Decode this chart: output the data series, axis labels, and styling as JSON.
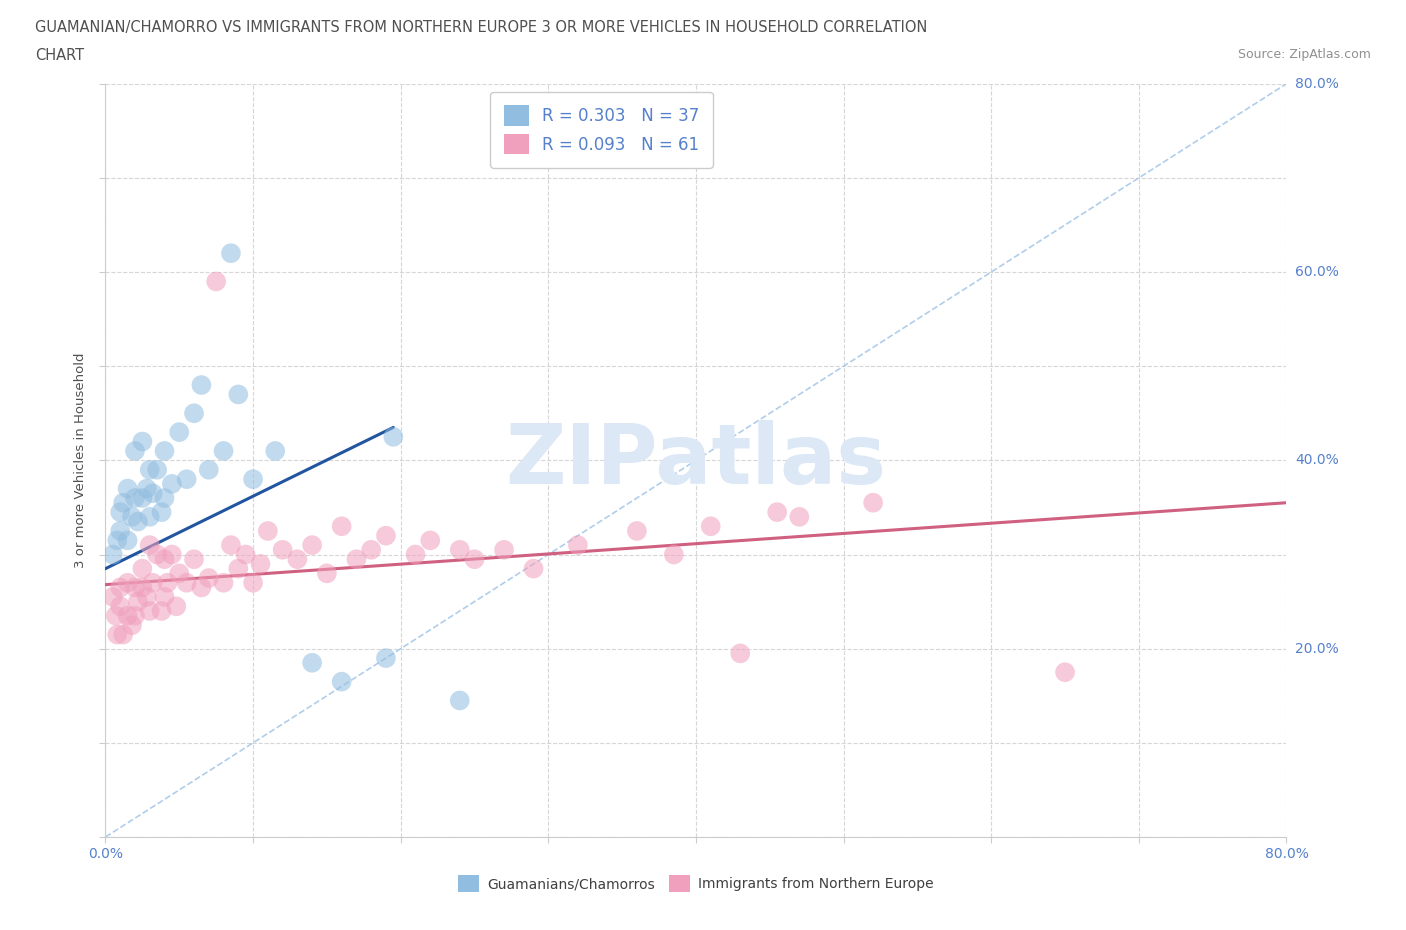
{
  "title_line1": "GUAMANIAN/CHAMORRO VS IMMIGRANTS FROM NORTHERN EUROPE 3 OR MORE VEHICLES IN HOUSEHOLD CORRELATION",
  "title_line2": "CHART",
  "source_text": "Source: ZipAtlas.com",
  "ylabel": "3 or more Vehicles in Household",
  "xlim": [
    0.0,
    0.8
  ],
  "ylim": [
    0.0,
    0.8
  ],
  "blue_scatter_x": [
    0.005,
    0.008,
    0.01,
    0.01,
    0.012,
    0.015,
    0.015,
    0.018,
    0.02,
    0.02,
    0.022,
    0.025,
    0.025,
    0.028,
    0.03,
    0.03,
    0.032,
    0.035,
    0.038,
    0.04,
    0.04,
    0.045,
    0.05,
    0.055,
    0.06,
    0.065,
    0.07,
    0.08,
    0.085,
    0.09,
    0.1,
    0.115,
    0.14,
    0.16,
    0.19,
    0.195,
    0.24
  ],
  "blue_scatter_y": [
    0.3,
    0.315,
    0.325,
    0.345,
    0.355,
    0.315,
    0.37,
    0.34,
    0.36,
    0.41,
    0.335,
    0.36,
    0.42,
    0.37,
    0.34,
    0.39,
    0.365,
    0.39,
    0.345,
    0.36,
    0.41,
    0.375,
    0.43,
    0.38,
    0.45,
    0.48,
    0.39,
    0.41,
    0.62,
    0.47,
    0.38,
    0.41,
    0.185,
    0.165,
    0.19,
    0.425,
    0.145
  ],
  "pink_scatter_x": [
    0.005,
    0.007,
    0.008,
    0.01,
    0.01,
    0.012,
    0.015,
    0.015,
    0.018,
    0.02,
    0.02,
    0.022,
    0.025,
    0.025,
    0.028,
    0.03,
    0.03,
    0.032,
    0.035,
    0.038,
    0.04,
    0.04,
    0.042,
    0.045,
    0.048,
    0.05,
    0.055,
    0.06,
    0.065,
    0.07,
    0.075,
    0.08,
    0.085,
    0.09,
    0.095,
    0.1,
    0.105,
    0.11,
    0.12,
    0.13,
    0.14,
    0.15,
    0.16,
    0.17,
    0.18,
    0.19,
    0.21,
    0.22,
    0.24,
    0.25,
    0.27,
    0.29,
    0.32,
    0.36,
    0.385,
    0.41,
    0.43,
    0.455,
    0.47,
    0.52,
    0.65
  ],
  "pink_scatter_y": [
    0.255,
    0.235,
    0.215,
    0.245,
    0.265,
    0.215,
    0.235,
    0.27,
    0.225,
    0.265,
    0.235,
    0.25,
    0.285,
    0.265,
    0.255,
    0.31,
    0.24,
    0.27,
    0.3,
    0.24,
    0.255,
    0.295,
    0.27,
    0.3,
    0.245,
    0.28,
    0.27,
    0.295,
    0.265,
    0.275,
    0.59,
    0.27,
    0.31,
    0.285,
    0.3,
    0.27,
    0.29,
    0.325,
    0.305,
    0.295,
    0.31,
    0.28,
    0.33,
    0.295,
    0.305,
    0.32,
    0.3,
    0.315,
    0.305,
    0.295,
    0.305,
    0.285,
    0.31,
    0.325,
    0.3,
    0.33,
    0.195,
    0.345,
    0.34,
    0.355,
    0.175
  ],
  "blue_line_x": [
    0.0,
    0.195
  ],
  "blue_line_y": [
    0.285,
    0.435
  ],
  "pink_line_x": [
    0.0,
    0.8
  ],
  "pink_line_y": [
    0.268,
    0.355
  ],
  "diagonal_line_x": [
    0.0,
    0.8
  ],
  "diagonal_line_y": [
    0.0,
    0.8
  ],
  "blue_dot_color": "#90bde0",
  "pink_dot_color": "#f0a0bc",
  "blue_line_color": "#2255a0",
  "pink_line_color": "#d06080",
  "diagonal_color": "#a8c8e8",
  "title_color": "#505050",
  "source_color": "#909090",
  "label_color": "#5580cc",
  "watermark_color": "#dce8f5",
  "r_blue": "0.303",
  "n_blue": "37",
  "r_pink": "0.093",
  "n_pink": "61"
}
